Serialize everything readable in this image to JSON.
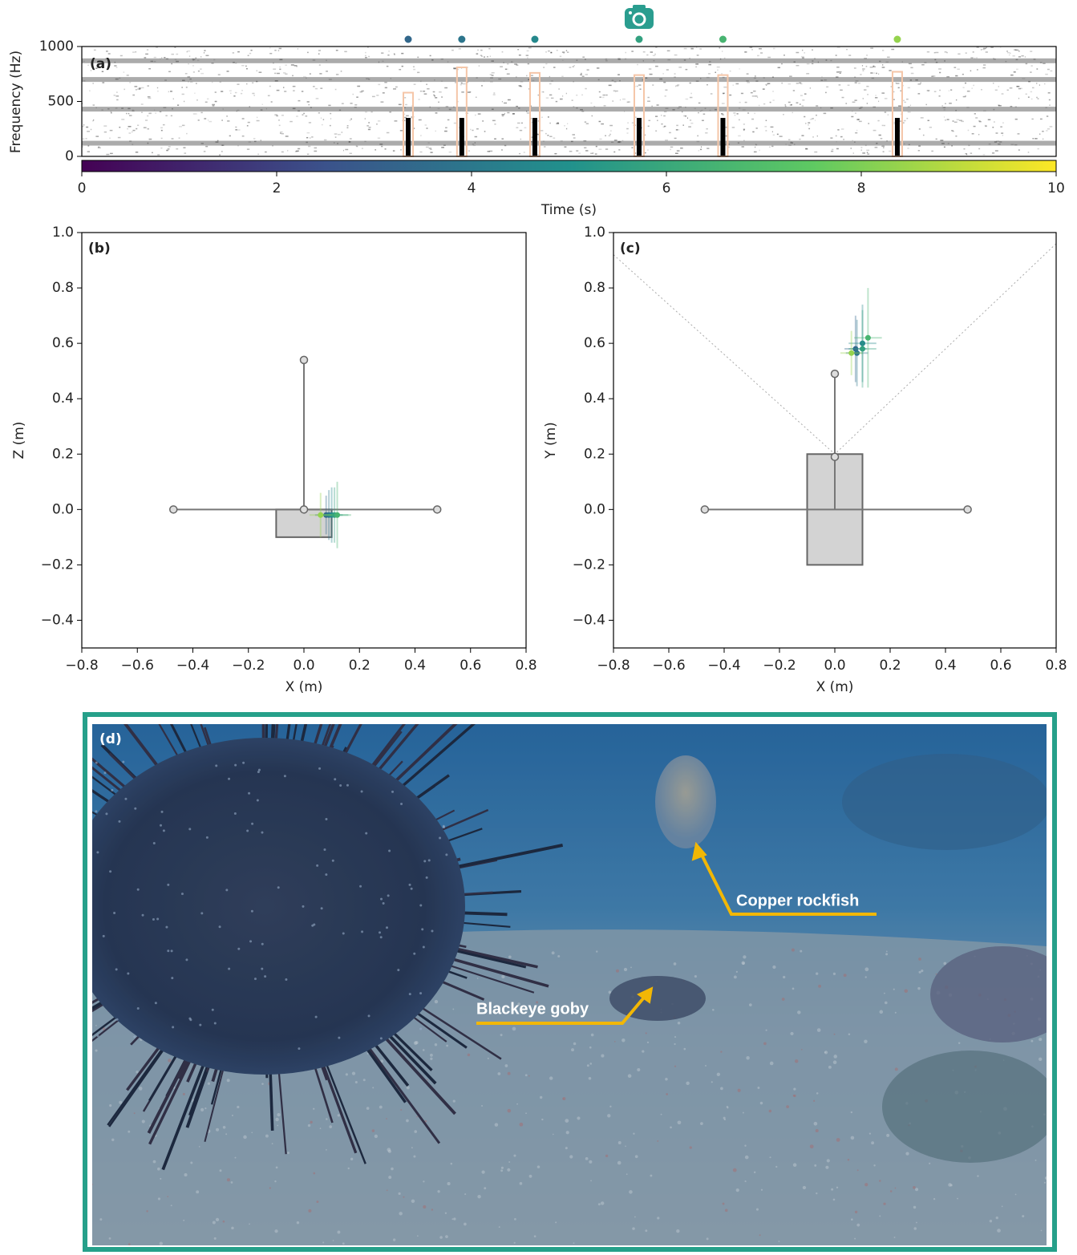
{
  "chart_data": [
    {
      "type": "spectrogram",
      "panel_label": "(a)",
      "y_label": "Frequency (Hz)",
      "x_label": "Time (s)",
      "xlim": [
        0,
        10
      ],
      "xticks": [
        0,
        2,
        4,
        6,
        8,
        10
      ],
      "ylim": [
        0,
        1000
      ],
      "yticks": [
        0,
        500,
        1000
      ],
      "tonal_bands": [
        120,
        430,
        700,
        870
      ],
      "detection_times": [
        3.35,
        3.9,
        4.65,
        5.72,
        6.58,
        8.37
      ],
      "detection_box_tops": [
        580,
        810,
        760,
        740,
        740,
        770
      ],
      "call_top": 350,
      "box_color": "#f5c6a8",
      "call_color": "#000000",
      "colormap": [
        "#440154",
        "#3b528b",
        "#21918c",
        "#5ec962",
        "#fde725"
      ],
      "camera_time": 5.72,
      "camera_color": "#2a9d8f"
    },
    {
      "type": "array-view",
      "panel_label": "(b)",
      "x_label": "X (m)",
      "y_label": "Z (m)",
      "xlim": [
        -0.8,
        0.8
      ],
      "ylim": [
        -0.5,
        1.0
      ],
      "xticks": [
        {
          "value": -0.8,
          "label": "−0.8"
        },
        {
          "value": -0.6,
          "label": "−0.6"
        },
        {
          "value": -0.4,
          "label": "−0.4"
        },
        {
          "value": -0.2,
          "label": "−0.2"
        },
        {
          "value": 0,
          "label": "0.0"
        },
        0.2,
        0.4,
        0.6,
        0.8
      ],
      "yticks": [
        {
          "value": -0.4,
          "label": "−0.4"
        },
        {
          "value": -0.2,
          "label": "−0.2"
        },
        {
          "value": 0,
          "label": "0.0"
        },
        0.2,
        0.4,
        0.6,
        0.8,
        {
          "value": 1.0,
          "label": "1.0"
        }
      ],
      "hydrophones": {
        "x": [
          -0.47,
          0.48,
          0,
          0
        ],
        "y": [
          0,
          0,
          0,
          0.54
        ]
      },
      "frame": {
        "x": [
          -0.1,
          0.1
        ],
        "y": [
          -0.1,
          0
        ]
      },
      "localizations": {
        "x": [
          0.08,
          0.09,
          0.1,
          0.11,
          0.12,
          0.06
        ],
        "y": [
          -0.02,
          -0.02,
          -0.02,
          -0.02,
          -0.02,
          -0.02
        ],
        "xerr": [
          0.04,
          0.04,
          0.04,
          0.05,
          0.05,
          0.04
        ],
        "yerr": [
          0.07,
          0.09,
          0.1,
          0.1,
          0.12,
          0.08
        ]
      }
    },
    {
      "type": "array-view",
      "panel_label": "(c)",
      "x_label": "X (m)",
      "y_label": "Y (m)",
      "xlim": [
        -0.8,
        0.8
      ],
      "ylim": [
        -0.5,
        1.0
      ],
      "xticks": [
        {
          "value": -0.8,
          "label": "−0.8"
        },
        {
          "value": -0.6,
          "label": "−0.6"
        },
        {
          "value": -0.4,
          "label": "−0.4"
        },
        {
          "value": -0.2,
          "label": "−0.2"
        },
        {
          "value": 0,
          "label": "0.0"
        },
        0.2,
        0.4,
        0.6,
        0.8
      ],
      "yticks": [
        {
          "value": -0.4,
          "label": "−0.4"
        },
        {
          "value": -0.2,
          "label": "−0.2"
        },
        {
          "value": 0,
          "label": "0.0"
        },
        0.2,
        0.4,
        0.6,
        0.8,
        {
          "value": 1.0,
          "label": "1.0"
        }
      ],
      "hydrophones": {
        "x": [
          -0.47,
          0.48,
          0,
          0
        ],
        "y": [
          0,
          0,
          0.19,
          0.49
        ]
      },
      "frame": {
        "x": [
          -0.1,
          0.1
        ],
        "y": [
          -0.2,
          0.2
        ]
      },
      "view_lines": {
        "x": [
          -0.8,
          0,
          0.8
        ],
        "y": [
          0.92,
          0.2,
          0.96
        ]
      },
      "localizations": {
        "x": [
          0.075,
          0.08,
          0.1,
          0.1,
          0.12,
          0.06
        ],
        "y": [
          0.58,
          0.565,
          0.6,
          0.58,
          0.62,
          0.565
        ],
        "xerr": [
          0.04,
          0.04,
          0.05,
          0.05,
          0.05,
          0.04
        ],
        "yerr": [
          0.12,
          0.12,
          0.14,
          0.14,
          0.18,
          0.08
        ]
      }
    },
    {
      "type": "photo",
      "panel_label": "(d)",
      "frame_color": "#26a08a",
      "arrow_color": "#f2b705",
      "annotations": [
        "Copper rockfish",
        "Blackeye goby"
      ]
    }
  ]
}
